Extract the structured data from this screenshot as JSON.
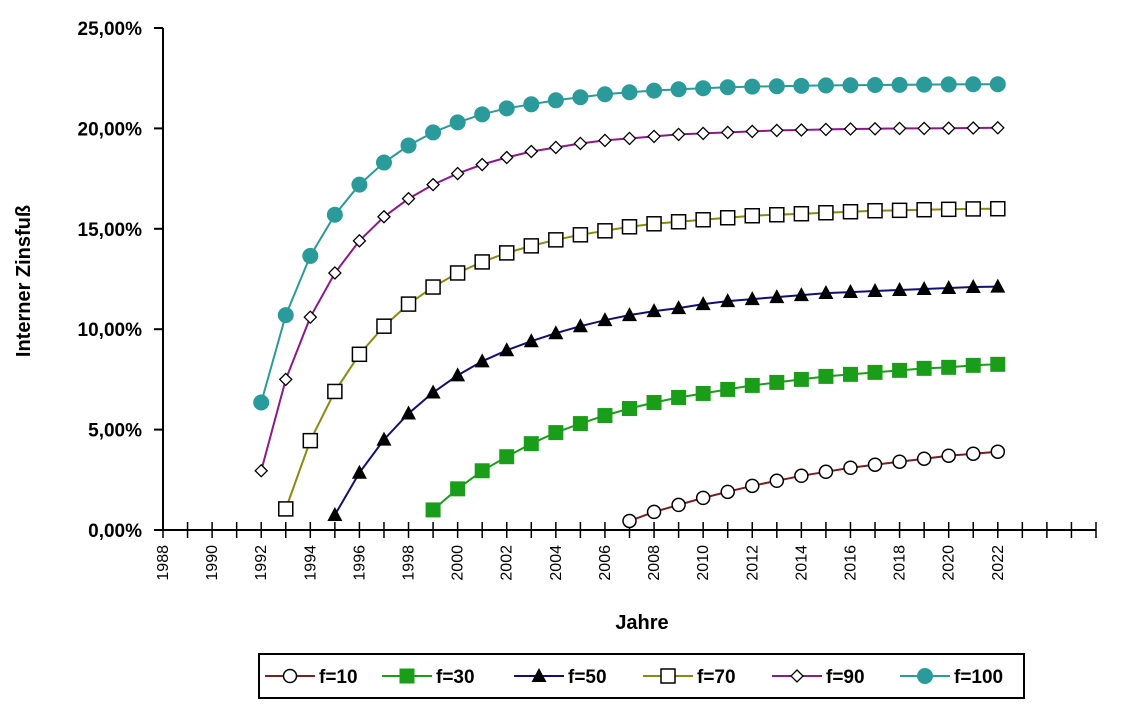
{
  "chart_data": {
    "type": "line",
    "xlabel": "Jahre",
    "ylabel": "Interner Zinsfuß",
    "xlim": [
      1988,
      2026
    ],
    "ylim": [
      0,
      25
    ],
    "ytick_values": [
      0,
      5,
      10,
      15,
      20,
      25
    ],
    "ytick_labels": [
      "0,00%",
      "5,00%",
      "10,00%",
      "15,00%",
      "20,00%",
      "25,00%"
    ],
    "xtick_labels": [
      "1988",
      "1990",
      "1992",
      "1994",
      "1996",
      "1998",
      "2000",
      "2002",
      "2004",
      "2006",
      "2008",
      "2010",
      "2012",
      "2014",
      "2016",
      "2018",
      "2020",
      "2022"
    ],
    "grid": false,
    "legend_position": "bottom",
    "series": [
      {
        "name": "f=10",
        "color": "#7a1f1f",
        "marker": "circle-open",
        "x": [
          2007,
          2008,
          2009,
          2010,
          2011,
          2012,
          2013,
          2014,
          2015,
          2016,
          2017,
          2018,
          2019,
          2020,
          2021,
          2022
        ],
        "values": [
          0.45,
          0.9,
          1.25,
          1.6,
          1.9,
          2.2,
          2.45,
          2.7,
          2.9,
          3.1,
          3.25,
          3.4,
          3.55,
          3.7,
          3.8,
          3.9
        ]
      },
      {
        "name": "f=30",
        "color": "#1a9e1a",
        "marker": "square-filled",
        "x": [
          1999,
          2000,
          2001,
          2002,
          2003,
          2004,
          2005,
          2006,
          2007,
          2008,
          2009,
          2010,
          2011,
          2012,
          2013,
          2014,
          2015,
          2016,
          2017,
          2018,
          2019,
          2020,
          2021,
          2022
        ],
        "values": [
          1.0,
          2.05,
          2.95,
          3.65,
          4.3,
          4.85,
          5.3,
          5.7,
          6.05,
          6.35,
          6.6,
          6.8,
          7.0,
          7.2,
          7.35,
          7.5,
          7.65,
          7.75,
          7.85,
          7.95,
          8.05,
          8.1,
          8.2,
          8.25
        ]
      },
      {
        "name": "f=50",
        "color": "#101070",
        "marker": "triangle-filled",
        "x": [
          1995,
          1996,
          1997,
          1998,
          1999,
          2000,
          2001,
          2002,
          2003,
          2004,
          2005,
          2006,
          2007,
          2008,
          2009,
          2010,
          2011,
          2012,
          2013,
          2014,
          2015,
          2016,
          2017,
          2018,
          2019,
          2020,
          2021,
          2022
        ],
        "values": [
          0.75,
          2.85,
          4.5,
          5.8,
          6.85,
          7.7,
          8.4,
          8.95,
          9.4,
          9.8,
          10.15,
          10.45,
          10.7,
          10.9,
          11.05,
          11.25,
          11.4,
          11.5,
          11.6,
          11.7,
          11.8,
          11.85,
          11.9,
          11.95,
          12.0,
          12.05,
          12.1,
          12.12
        ]
      },
      {
        "name": "f=70",
        "color": "#8a8a10",
        "marker": "square-open",
        "x": [
          1993,
          1994,
          1995,
          1996,
          1997,
          1998,
          1999,
          2000,
          2001,
          2002,
          2003,
          2004,
          2005,
          2006,
          2007,
          2008,
          2009,
          2010,
          2011,
          2012,
          2013,
          2014,
          2015,
          2016,
          2017,
          2018,
          2019,
          2020,
          2021,
          2022
        ],
        "values": [
          1.05,
          4.45,
          6.9,
          8.75,
          10.15,
          11.25,
          12.1,
          12.8,
          13.35,
          13.8,
          14.15,
          14.45,
          14.7,
          14.9,
          15.1,
          15.25,
          15.35,
          15.45,
          15.55,
          15.65,
          15.7,
          15.75,
          15.8,
          15.85,
          15.9,
          15.92,
          15.95,
          15.97,
          15.99,
          16.0
        ]
      },
      {
        "name": "f=90",
        "color": "#8a1a8a",
        "marker": "diamond-open",
        "x": [
          1992,
          1993,
          1994,
          1995,
          1996,
          1997,
          1998,
          1999,
          2000,
          2001,
          2002,
          2003,
          2004,
          2005,
          2006,
          2007,
          2008,
          2009,
          2010,
          2011,
          2012,
          2013,
          2014,
          2015,
          2016,
          2017,
          2018,
          2019,
          2020,
          2021,
          2022
        ],
        "values": [
          2.95,
          7.5,
          10.6,
          12.8,
          14.4,
          15.6,
          16.5,
          17.2,
          17.75,
          18.2,
          18.55,
          18.85,
          19.05,
          19.25,
          19.4,
          19.5,
          19.6,
          19.7,
          19.75,
          19.8,
          19.85,
          19.9,
          19.92,
          19.95,
          19.97,
          19.98,
          20.0,
          20.0,
          20.01,
          20.02,
          20.03
        ]
      },
      {
        "name": "f=100",
        "color": "#2a9a9a",
        "marker": "circle-filled",
        "x": [
          1992,
          1993,
          1994,
          1995,
          1996,
          1997,
          1998,
          1999,
          2000,
          2001,
          2002,
          2003,
          2004,
          2005,
          2006,
          2007,
          2008,
          2009,
          2010,
          2011,
          2012,
          2013,
          2014,
          2015,
          2016,
          2017,
          2018,
          2019,
          2020,
          2021,
          2022
        ],
        "values": [
          6.35,
          10.7,
          13.65,
          15.7,
          17.2,
          18.3,
          19.15,
          19.8,
          20.3,
          20.7,
          21.0,
          21.2,
          21.4,
          21.55,
          21.7,
          21.8,
          21.88,
          21.95,
          22.0,
          22.05,
          22.08,
          22.1,
          22.12,
          22.14,
          22.15,
          22.16,
          22.17,
          22.18,
          22.19,
          22.2,
          22.2
        ]
      }
    ]
  }
}
